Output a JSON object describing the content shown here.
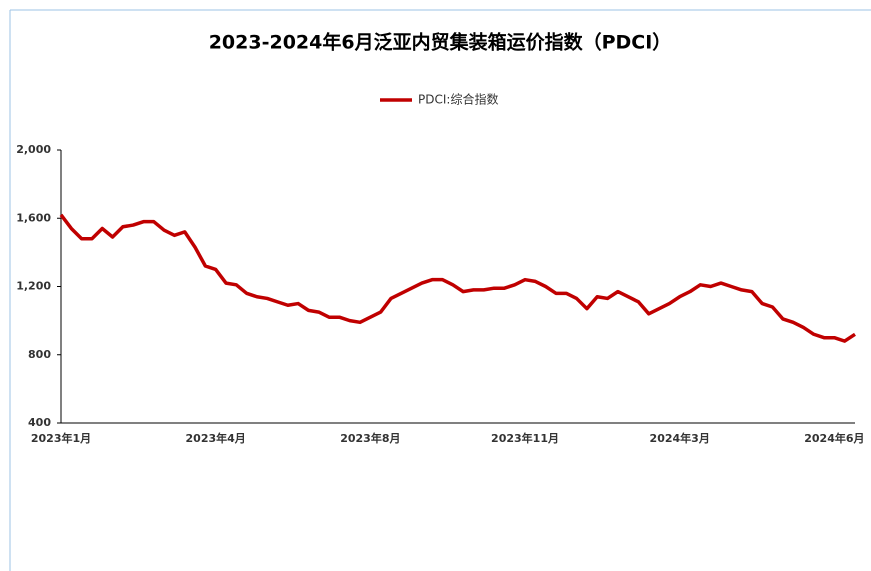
{
  "chart_data": {
    "type": "line",
    "title": "2023-2024年6月泛亚内贸集装箱运价指数（PDCI）",
    "categories": [
      "2023年1月",
      null,
      null,
      null,
      null,
      null,
      null,
      null,
      null,
      null,
      null,
      null,
      null,
      null,
      null,
      "2023年4月",
      null,
      null,
      null,
      null,
      null,
      null,
      null,
      null,
      null,
      null,
      null,
      null,
      null,
      null,
      "2023年8月",
      null,
      null,
      null,
      null,
      null,
      null,
      null,
      null,
      null,
      null,
      null,
      null,
      null,
      null,
      "2023年11月",
      null,
      null,
      null,
      null,
      null,
      null,
      null,
      null,
      null,
      null,
      null,
      null,
      null,
      null,
      "2024年3月",
      null,
      null,
      null,
      null,
      null,
      null,
      null,
      null,
      null,
      null,
      null,
      null,
      null,
      null,
      "2024年6月",
      null,
      null
    ],
    "series": [
      {
        "name": "PDCI:综合指数",
        "color": "#c00000",
        "values": [
          1620,
          1540,
          1480,
          1480,
          1540,
          1490,
          1550,
          1560,
          1580,
          1580,
          1530,
          1500,
          1520,
          1430,
          1320,
          1300,
          1220,
          1210,
          1160,
          1140,
          1130,
          1110,
          1090,
          1100,
          1060,
          1050,
          1020,
          1020,
          1000,
          990,
          1020,
          1050,
          1130,
          1160,
          1190,
          1220,
          1240,
          1240,
          1210,
          1170,
          1180,
          1180,
          1190,
          1190,
          1210,
          1240,
          1230,
          1200,
          1160,
          1160,
          1130,
          1070,
          1140,
          1130,
          1170,
          1140,
          1110,
          1040,
          1070,
          1100,
          1140,
          1170,
          1210,
          1200,
          1220,
          1200,
          1180,
          1170,
          1100,
          1080,
          1010,
          990,
          960,
          920,
          900,
          900,
          880,
          920
        ]
      }
    ],
    "ylim": [
      400,
      2000
    ],
    "yticks": [
      {
        "value": 400,
        "label": "400"
      },
      {
        "value": 800,
        "label": "800"
      },
      {
        "value": 1200,
        "label": "1,200"
      },
      {
        "value": 1600,
        "label": "1,600"
      },
      {
        "value": 2000,
        "label": "2,000"
      }
    ],
    "legend": "top"
  }
}
